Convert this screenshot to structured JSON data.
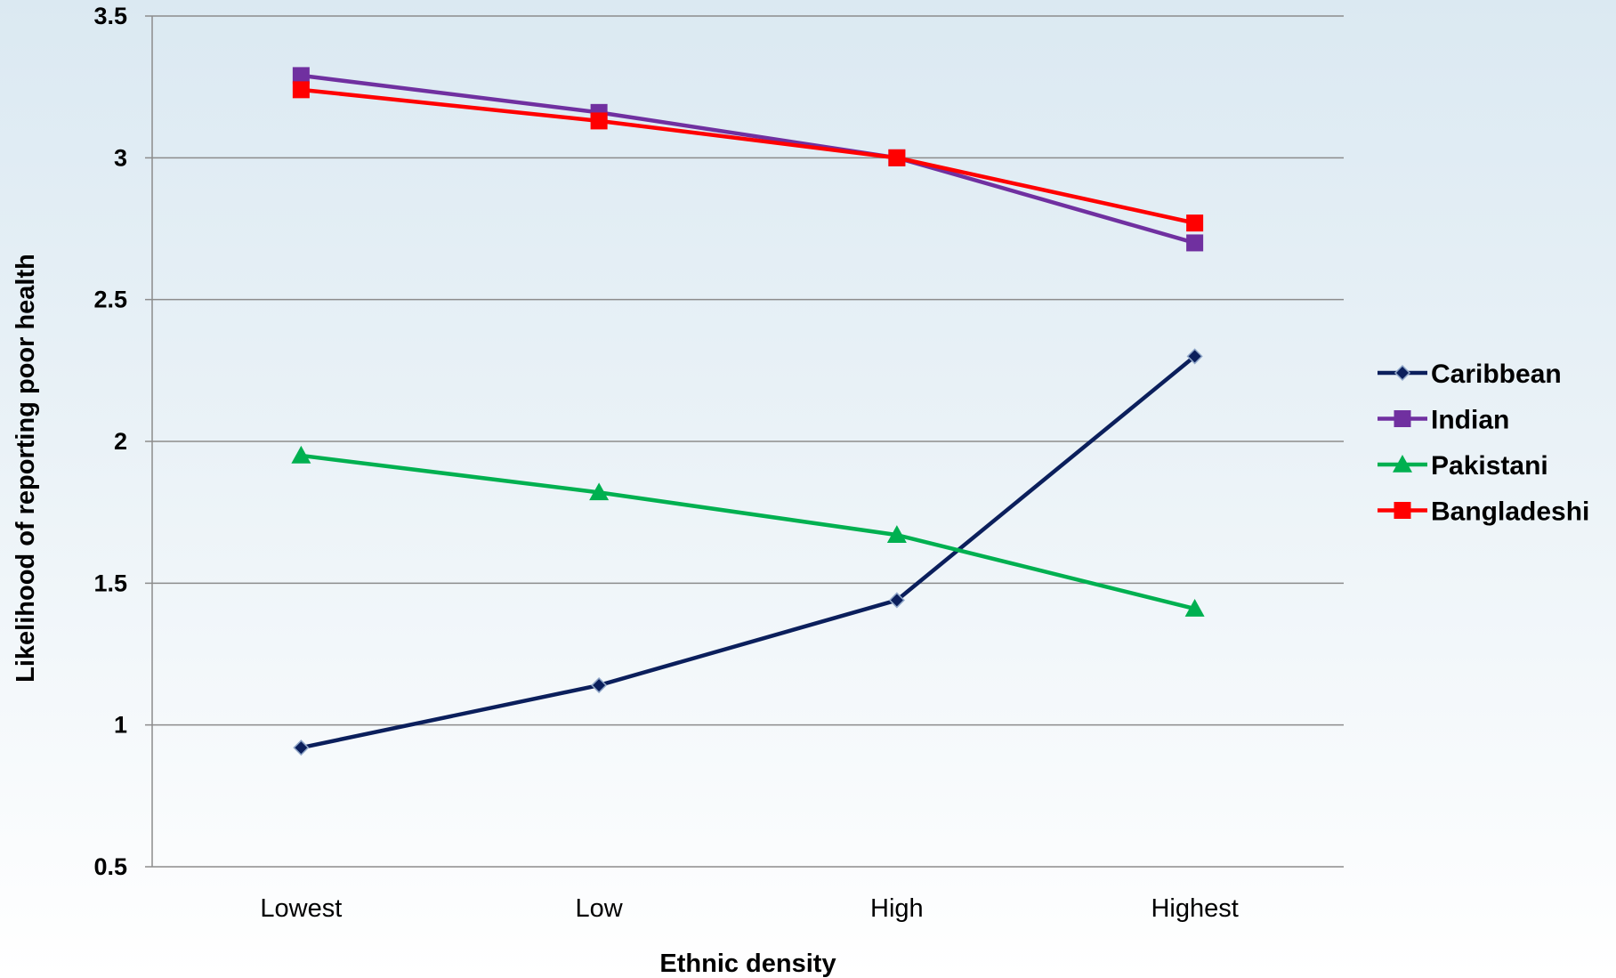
{
  "chart_data": {
    "type": "line",
    "categories": [
      "Lowest",
      "Low",
      "High",
      "Highest"
    ],
    "xlabel": "Ethnic density",
    "ylabel": "Likelihood of reporting poor health",
    "ylim": [
      0.5,
      3.5
    ],
    "yticks": [
      "0.5",
      "1",
      "1.5",
      "2",
      "2.5",
      "3",
      "3.5"
    ],
    "grid": "horizontal",
    "legend_position": "right",
    "series": [
      {
        "name": "Caribbean",
        "values": [
          0.92,
          1.14,
          1.44,
          2.3
        ],
        "color": "#0b1f5c",
        "marker": "diamond"
      },
      {
        "name": "Indian",
        "values": [
          3.29,
          3.16,
          3.0,
          2.7
        ],
        "color": "#7030a0",
        "marker": "square"
      },
      {
        "name": "Pakistani",
        "values": [
          1.95,
          1.82,
          1.67,
          1.41
        ],
        "color": "#00b050",
        "marker": "triangle"
      },
      {
        "name": "Bangladeshi",
        "values": [
          3.24,
          3.13,
          3.0,
          2.77
        ],
        "color": "#ff0000",
        "marker": "square"
      }
    ]
  }
}
